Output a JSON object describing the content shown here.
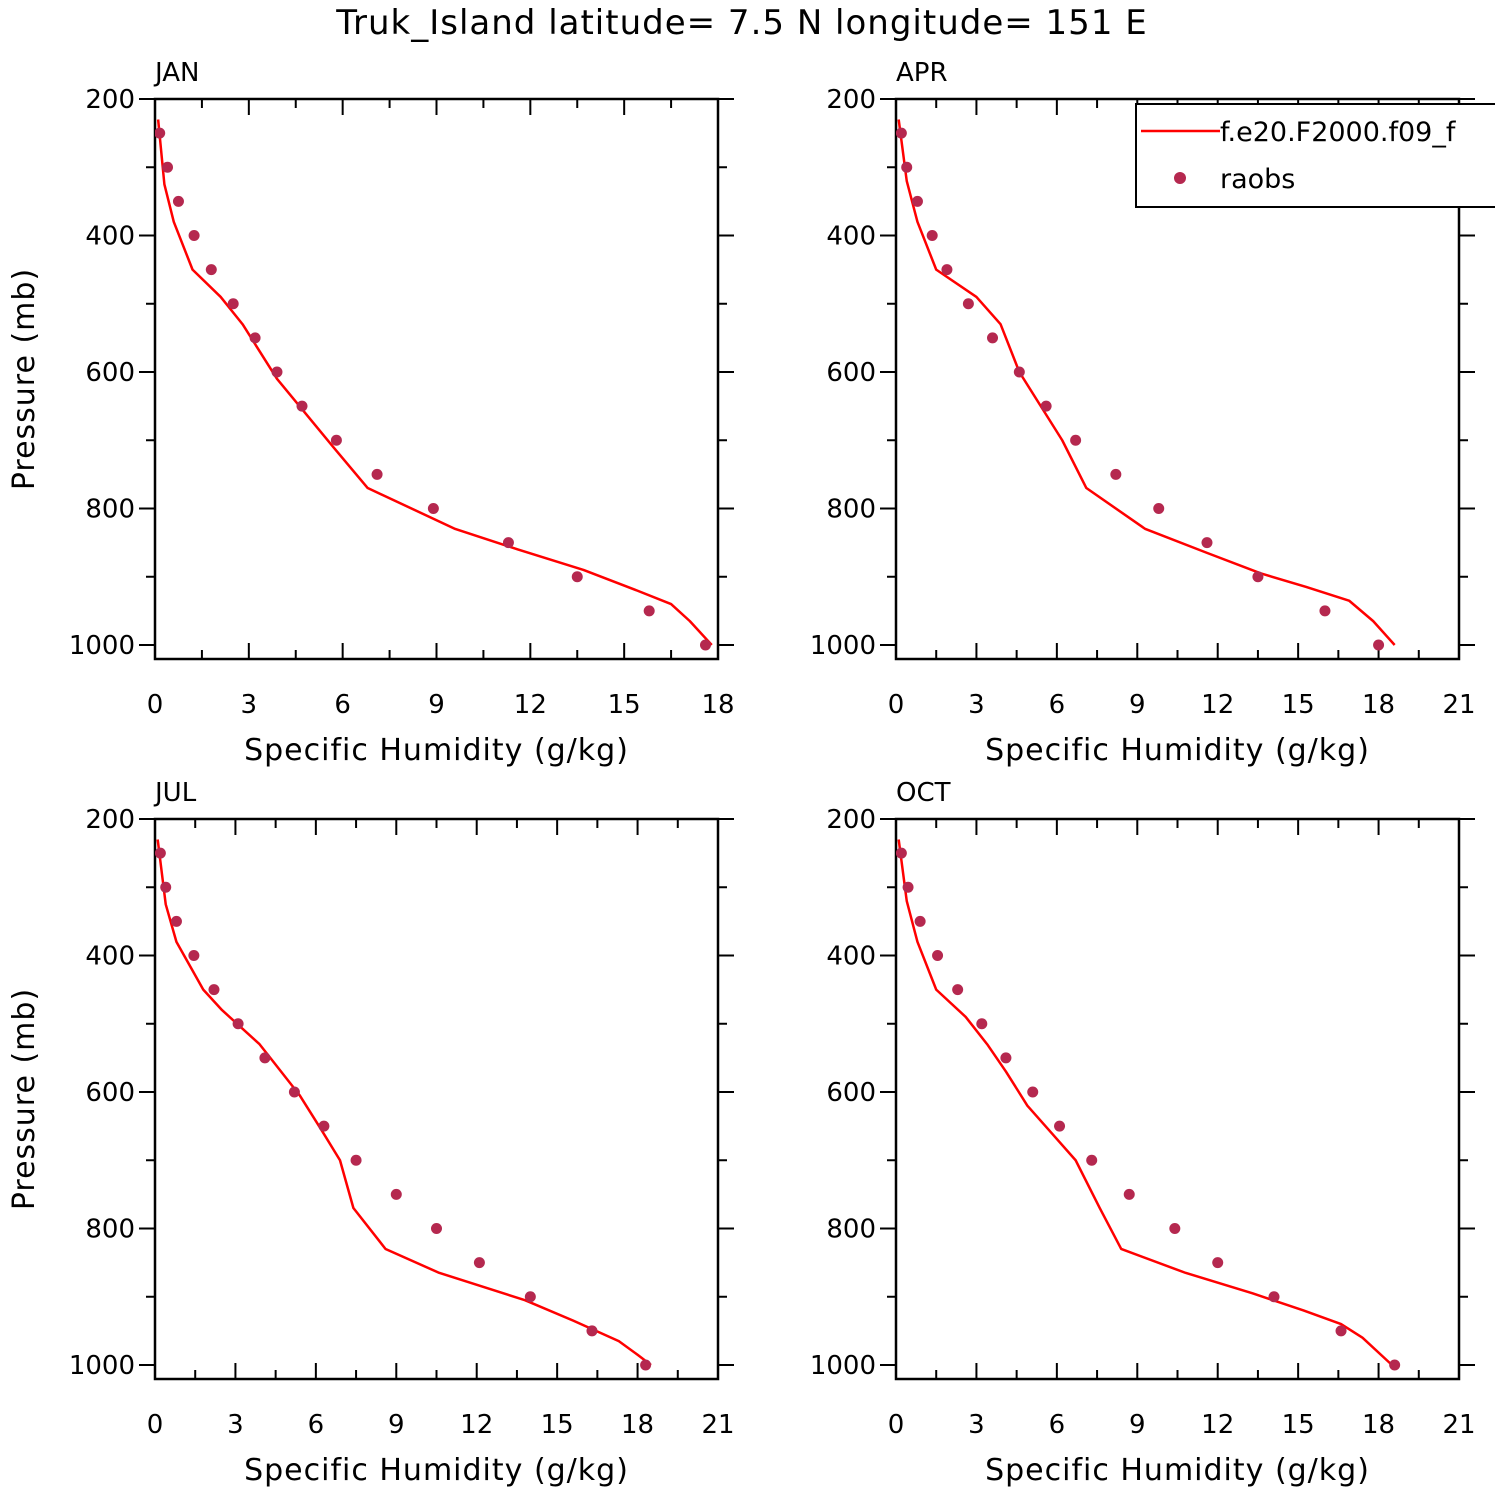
{
  "figure": {
    "title": "Truk_Island  latitude= 7.5 N longitude= 151 E"
  },
  "colors": {
    "model_line": "#ff0000",
    "raobs_marker": "#b5284f",
    "axes": "#000000"
  },
  "legend": {
    "entries": [
      {
        "label": "f.e20.F2000.f09_f",
        "symbol": "line",
        "color": "#ff0000"
      },
      {
        "label": "raobs",
        "symbol": "dot",
        "color": "#b5284f"
      }
    ],
    "placement": "top-right of APR panel (clipped at figure edge)"
  },
  "chart_data": [
    {
      "type": "line",
      "panel": "JAN",
      "xlabel": "Specific Humidity (g/kg)",
      "ylabel": "Pressure (mb)",
      "xlim": [
        0,
        18
      ],
      "ylim": [
        1000,
        200
      ],
      "x_ticks": [
        0,
        3,
        6,
        9,
        12,
        15,
        18
      ],
      "y_ticks": [
        200,
        400,
        600,
        800,
        1000
      ],
      "series": [
        {
          "name": "f.e20.F2000.f09_f",
          "kind": "line",
          "x": [
            17.8,
            17.1,
            16.5,
            15.4,
            13.7,
            11.6,
            9.6,
            6.8,
            5.7,
            4.8,
            3.9,
            2.8,
            2.1,
            1.2,
            0.6,
            0.3,
            0.1
          ],
          "y": [
            1000,
            965,
            940,
            920,
            890,
            860,
            830,
            770,
            710,
            660,
            610,
            530,
            490,
            450,
            380,
            325,
            230
          ]
        },
        {
          "name": "raobs",
          "kind": "scatter",
          "x": [
            17.6,
            15.8,
            13.5,
            11.3,
            8.9,
            7.1,
            5.8,
            4.7,
            3.9,
            3.2,
            2.5,
            1.8,
            1.25,
            0.75,
            0.4,
            0.15
          ],
          "y": [
            1000,
            950,
            900,
            850,
            800,
            750,
            700,
            650,
            600,
            550,
            500,
            450,
            400,
            350,
            300,
            250
          ]
        }
      ]
    },
    {
      "type": "line",
      "panel": "APR",
      "xlabel": "Specific Humidity (g/kg)",
      "ylabel": "",
      "xlim": [
        0,
        21
      ],
      "ylim": [
        1000,
        200
      ],
      "x_ticks": [
        0,
        3,
        6,
        9,
        12,
        15,
        18,
        21
      ],
      "y_ticks": [
        200,
        400,
        600,
        800,
        1000
      ],
      "series": [
        {
          "name": "f.e20.F2000.f09_f",
          "kind": "line",
          "x": [
            18.6,
            17.8,
            16.9,
            15.3,
            13.6,
            11.6,
            9.3,
            7.1,
            6.2,
            5.4,
            4.6,
            3.9,
            3.0,
            1.5,
            0.8,
            0.4,
            0.1
          ],
          "y": [
            1000,
            965,
            935,
            915,
            895,
            865,
            830,
            770,
            700,
            650,
            600,
            530,
            490,
            450,
            380,
            320,
            230
          ]
        },
        {
          "name": "raobs",
          "kind": "scatter",
          "x": [
            18.0,
            16.0,
            13.5,
            11.6,
            9.8,
            8.2,
            6.7,
            5.6,
            4.6,
            3.6,
            2.7,
            1.9,
            1.35,
            0.8,
            0.4,
            0.2
          ],
          "y": [
            1000,
            950,
            900,
            850,
            800,
            750,
            700,
            650,
            600,
            550,
            500,
            450,
            400,
            350,
            300,
            250
          ]
        }
      ]
    },
    {
      "type": "line",
      "panel": "JUL",
      "xlabel": "Specific Humidity (g/kg)",
      "ylabel": "Pressure (mb)",
      "xlim": [
        0,
        21
      ],
      "ylim": [
        1000,
        200
      ],
      "x_ticks": [
        0,
        3,
        6,
        9,
        12,
        15,
        18,
        21
      ],
      "y_ticks": [
        200,
        400,
        600,
        800,
        1000
      ],
      "series": [
        {
          "name": "f.e20.F2000.f09_f",
          "kind": "line",
          "x": [
            18.5,
            18.0,
            17.3,
            15.6,
            13.8,
            10.6,
            8.6,
            7.4,
            6.9,
            6.2,
            5.4,
            4.4,
            3.9,
            2.5,
            1.8,
            0.8,
            0.4,
            0.1
          ],
          "y": [
            1000,
            985,
            965,
            935,
            905,
            865,
            830,
            770,
            700,
            655,
            605,
            555,
            530,
            480,
            450,
            380,
            325,
            230
          ]
        },
        {
          "name": "raobs",
          "kind": "scatter",
          "x": [
            18.3,
            16.3,
            14.0,
            12.1,
            10.5,
            9.0,
            7.5,
            6.3,
            5.2,
            4.1,
            3.1,
            2.2,
            1.45,
            0.8,
            0.4,
            0.2
          ],
          "y": [
            1000,
            950,
            900,
            850,
            800,
            750,
            700,
            650,
            600,
            550,
            500,
            450,
            400,
            350,
            300,
            250
          ]
        }
      ]
    },
    {
      "type": "line",
      "panel": "OCT",
      "xlabel": "Specific Humidity (g/kg)",
      "ylabel": "",
      "xlim": [
        0,
        21
      ],
      "ylim": [
        1000,
        200
      ],
      "x_ticks": [
        0,
        3,
        6,
        9,
        12,
        15,
        18,
        21
      ],
      "y_ticks": [
        200,
        400,
        600,
        800,
        1000
      ],
      "series": [
        {
          "name": "f.e20.F2000.f09_f",
          "kind": "line",
          "x": [
            18.5,
            17.4,
            16.6,
            15.2,
            13.3,
            10.8,
            8.4,
            7.6,
            6.7,
            5.8,
            4.9,
            4.1,
            3.4,
            2.6,
            1.5,
            0.8,
            0.4,
            0.1
          ],
          "y": [
            1000,
            960,
            940,
            920,
            895,
            865,
            830,
            770,
            700,
            660,
            620,
            570,
            530,
            490,
            450,
            380,
            320,
            230
          ]
        },
        {
          "name": "raobs",
          "kind": "scatter",
          "x": [
            18.6,
            16.6,
            14.1,
            12.0,
            10.4,
            8.7,
            7.3,
            6.1,
            5.1,
            4.1,
            3.2,
            2.3,
            1.55,
            0.9,
            0.45,
            0.2
          ],
          "y": [
            1000,
            950,
            900,
            850,
            800,
            750,
            700,
            650,
            600,
            550,
            500,
            450,
            400,
            350,
            300,
            250
          ]
        }
      ]
    }
  ]
}
